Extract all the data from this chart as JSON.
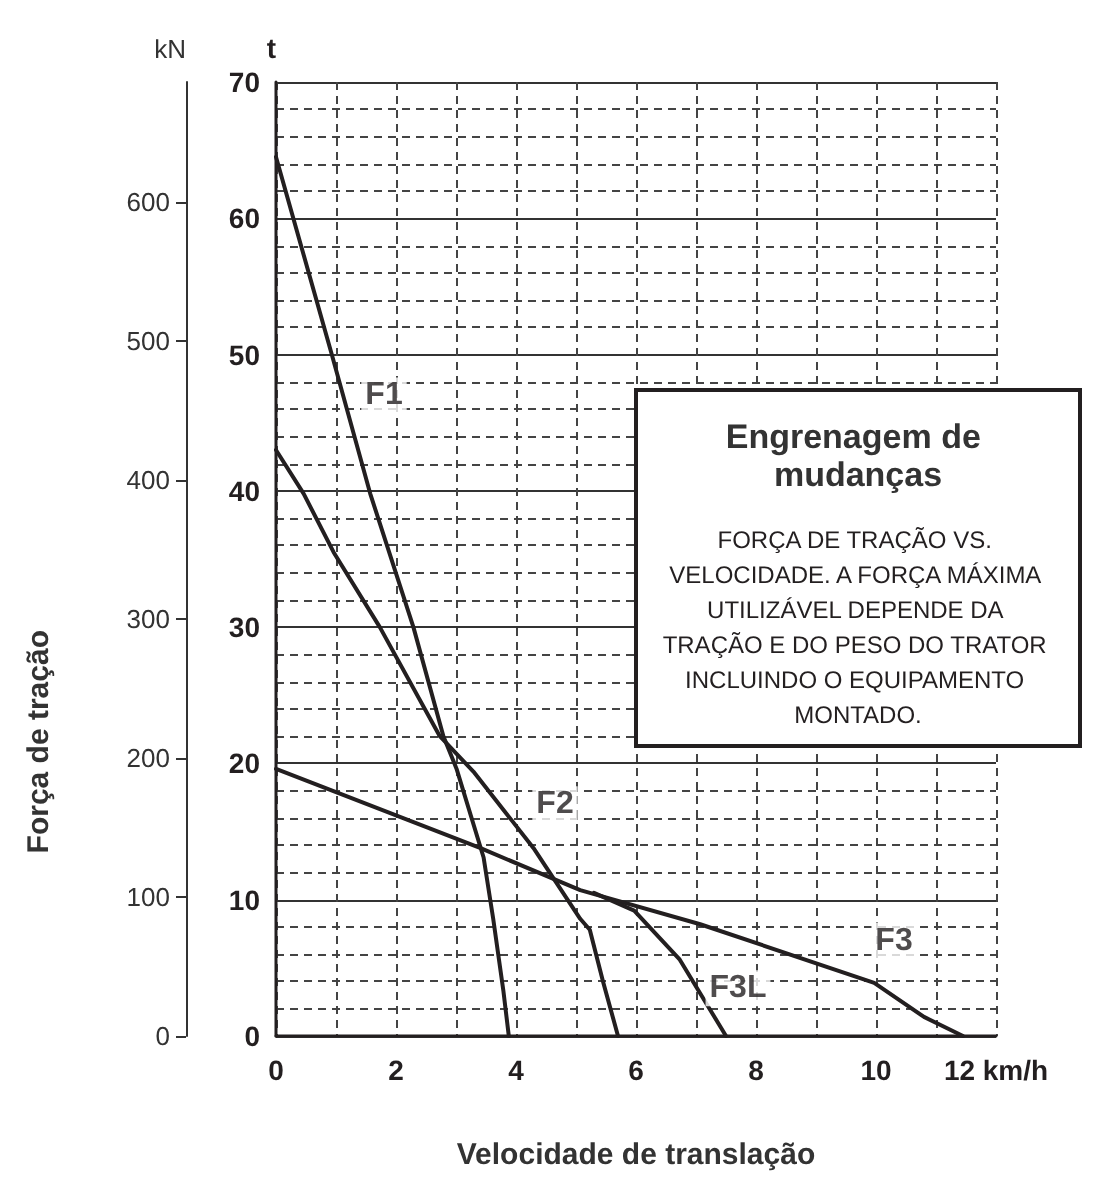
{
  "chart_data": {
    "type": "line",
    "xlabel": "Velocidade de translação",
    "ylabel": "t",
    "y2label": "kN",
    "xlim": [
      0,
      12
    ],
    "xticks": [
      0,
      2,
      4,
      6,
      8,
      10,
      {
        "value": 12,
        "label": "12 km/h"
      }
    ],
    "ylim": [
      0,
      70
    ],
    "yticks": [
      0,
      10,
      20,
      30,
      40,
      50,
      60,
      70
    ],
    "y2lim": [
      0,
      686.5
    ],
    "y2ticks": [
      0,
      100,
      200,
      300,
      400,
      500,
      600
    ],
    "grid": true,
    "marker": "none",
    "line_style": "solid",
    "series": [
      {
        "color": "#231f20",
        "x": [
          0,
          0.93,
          1.57,
          2.29,
          2.79,
          3.01,
          3.46,
          3.62,
          3.79,
          3.88
        ],
        "values": [
          64.5,
          50,
          39.8,
          30,
          22,
          19.6,
          13.1,
          8.6,
          3.3,
          0
        ]
      },
      {
        "color": "#231f20",
        "x": [
          0,
          0.46,
          0.96,
          1.73,
          2.73,
          3.29,
          4.29,
          4.68,
          5.07,
          5.23,
          5.45,
          5.7
        ],
        "values": [
          43,
          39.8,
          35.5,
          30,
          22,
          19.4,
          13.8,
          11.2,
          8.6,
          7.8,
          4,
          0
        ]
      },
      {
        "color": "#231f20",
        "x": [
          0,
          3.4,
          5.07,
          7.07,
          9.97,
          10.8,
          11.45
        ],
        "values": [
          19.6,
          13.8,
          10.7,
          8.2,
          3.9,
          1.4,
          0
        ]
      },
      {
        "color": "#231f20",
        "x": [
          5.3,
          5.97,
          6.73,
          7.5
        ],
        "values": [
          10.5,
          9.2,
          5.6,
          0
        ]
      }
    ],
    "annotations": [
      "Força de tração",
      "Engrenagem de mudanças",
      "FORÇA DE TRAÇÃO VS. VELOCIDADE. A FORÇA MÁXIMA UTILIZÁVEL DEPENDE DA TRAÇÃO E DO PESO DO TRATOR INCLUINDO O EQUIPAMENTO MONTADO.",
      {
        "text": "F1",
        "x": 1.8,
        "y": 47
      },
      {
        "text": "F2",
        "x": 4.65,
        "y": 17
      },
      {
        "text": "F3",
        "x": 10.3,
        "y": 7
      },
      {
        "text": "F3L",
        "x": 7.7,
        "y": 3.5
      }
    ]
  }
}
